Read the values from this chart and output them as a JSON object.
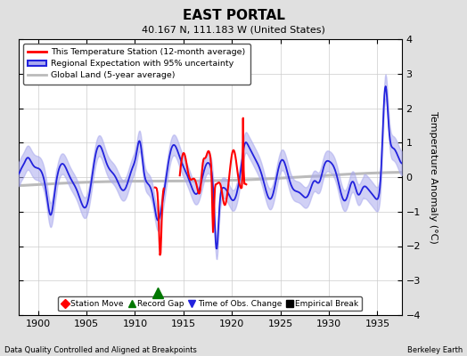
{
  "title": "EAST PORTAL",
  "subtitle": "40.167 N, 111.183 W (United States)",
  "ylabel": "Temperature Anomaly (°C)",
  "xlabel_left": "Data Quality Controlled and Aligned at Breakpoints",
  "xlabel_right": "Berkeley Earth",
  "xlim": [
    1898.0,
    1937.5
  ],
  "ylim": [
    -4,
    4
  ],
  "yticks": [
    -4,
    -3,
    -2,
    -1,
    0,
    1,
    2,
    3,
    4
  ],
  "xticks": [
    1900,
    1905,
    1910,
    1915,
    1920,
    1925,
    1930,
    1935
  ],
  "bg_color": "#e0e0e0",
  "plot_bg_color": "#ffffff",
  "blue_line_color": "#2222dd",
  "blue_fill_color": "#aaaaee",
  "red_line_color": "#ff0000",
  "gray_line_color": "#bbbbbb",
  "grid_color": "#cccccc",
  "green_color": "#007700",
  "record_gap_x": 1912.3,
  "record_gap_y": -3.35
}
